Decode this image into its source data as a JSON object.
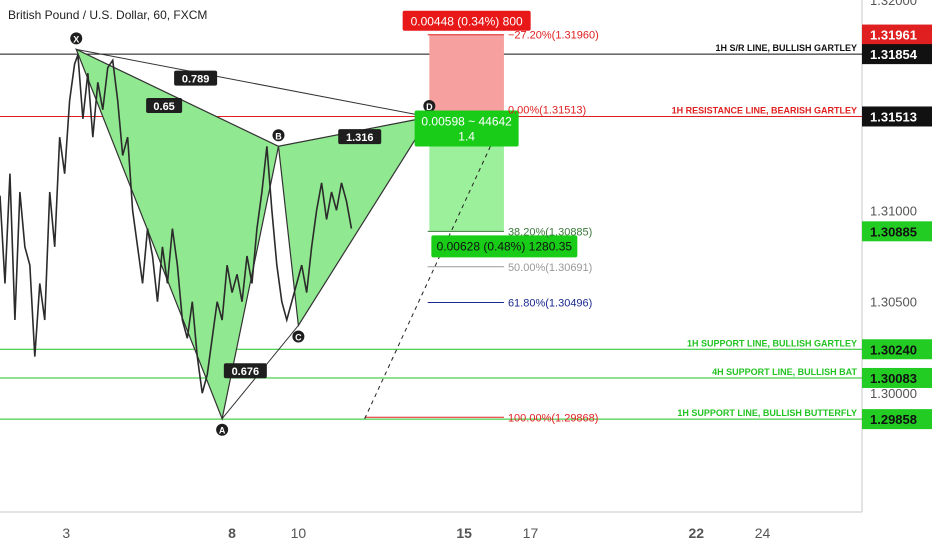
{
  "header": {
    "title": "British Pound / U.S. Dollar, 60, FXCM"
  },
  "chart_data": {
    "type": "line",
    "title": "British Pound / U.S. Dollar, 60, FXCM",
    "ylim": [
      1.2935,
      1.3215
    ],
    "xlim": [
      1.0,
      27.0
    ],
    "x_tick_labels": [
      {
        "x": 3,
        "label": "3"
      },
      {
        "x": 8,
        "label": "8"
      },
      {
        "x": 10,
        "label": "10"
      },
      {
        "x": 15,
        "label": "15"
      },
      {
        "x": 17,
        "label": "17"
      },
      {
        "x": 22,
        "label": "22"
      },
      {
        "x": 24,
        "label": "24"
      }
    ],
    "y_tick_labels": [
      {
        "y": 1.3215,
        "label": "1.32000",
        "partial": true
      },
      {
        "y": 1.31,
        "label": "1.31000"
      },
      {
        "y": 1.305,
        "label": "1.30500"
      },
      {
        "y": 1.3,
        "label": "1.30000"
      }
    ],
    "price_series_color": "#2b2b2b",
    "price_series": [
      [
        1.0,
        1.3108
      ],
      [
        1.15,
        1.306
      ],
      [
        1.3,
        1.312
      ],
      [
        1.45,
        1.304
      ],
      [
        1.6,
        1.311
      ],
      [
        1.75,
        1.308
      ],
      [
        1.9,
        1.307
      ],
      [
        2.05,
        1.302
      ],
      [
        2.2,
        1.306
      ],
      [
        2.35,
        1.304
      ],
      [
        2.5,
        1.311
      ],
      [
        2.65,
        1.308
      ],
      [
        2.8,
        1.314
      ],
      [
        2.95,
        1.312
      ],
      [
        3.1,
        1.316
      ],
      [
        3.25,
        1.318
      ],
      [
        3.35,
        1.3185
      ],
      [
        3.5,
        1.315
      ],
      [
        3.65,
        1.3175
      ],
      [
        3.8,
        1.314
      ],
      [
        3.95,
        1.317
      ],
      [
        4.1,
        1.3155
      ],
      [
        4.25,
        1.3178
      ],
      [
        4.4,
        1.3182
      ],
      [
        4.55,
        1.316
      ],
      [
        4.7,
        1.313
      ],
      [
        4.85,
        1.314
      ],
      [
        5.0,
        1.31
      ],
      [
        5.15,
        1.308
      ],
      [
        5.3,
        1.306
      ],
      [
        5.45,
        1.309
      ],
      [
        5.6,
        1.3075
      ],
      [
        5.75,
        1.305
      ],
      [
        5.9,
        1.308
      ],
      [
        6.05,
        1.306
      ],
      [
        6.2,
        1.309
      ],
      [
        6.35,
        1.307
      ],
      [
        6.5,
        1.304
      ],
      [
        6.65,
        1.303
      ],
      [
        6.8,
        1.305
      ],
      [
        6.95,
        1.302
      ],
      [
        7.1,
        1.3
      ],
      [
        7.25,
        1.301
      ],
      [
        7.4,
        1.303
      ],
      [
        7.55,
        1.305
      ],
      [
        7.7,
        1.304
      ],
      [
        7.85,
        1.307
      ],
      [
        8.0,
        1.3055
      ],
      [
        8.15,
        1.3065
      ],
      [
        8.3,
        1.305
      ],
      [
        8.45,
        1.3075
      ],
      [
        8.6,
        1.306
      ],
      [
        8.75,
        1.309
      ],
      [
        8.9,
        1.311
      ],
      [
        9.05,
        1.3135
      ],
      [
        9.2,
        1.31
      ],
      [
        9.35,
        1.307
      ],
      [
        9.5,
        1.305
      ],
      [
        9.65,
        1.304
      ],
      [
        9.8,
        1.305
      ],
      [
        9.95,
        1.306
      ],
      [
        10.1,
        1.307
      ],
      [
        10.25,
        1.3055
      ],
      [
        10.4,
        1.308
      ],
      [
        10.55,
        1.31
      ],
      [
        10.7,
        1.3115
      ],
      [
        10.85,
        1.3095
      ],
      [
        11.0,
        1.311
      ],
      [
        11.15,
        1.31
      ],
      [
        11.3,
        1.3115
      ],
      [
        11.45,
        1.3105
      ],
      [
        11.6,
        1.309
      ]
    ],
    "pattern": {
      "points": [
        {
          "label": "X",
          "x": 3.3,
          "y": 1.3188
        },
        {
          "label": "A",
          "x": 7.7,
          "y": 1.2986
        },
        {
          "label": "B",
          "x": 9.4,
          "y": 1.3135
        },
        {
          "label": "C",
          "x": 10.0,
          "y": 1.3037
        },
        {
          "label": "D",
          "x": 13.95,
          "y": 1.3151
        }
      ],
      "ratios": [
        {
          "label": "0.789",
          "x": 6.9,
          "y": 1.3172
        },
        {
          "label": "0.65",
          "x": 5.95,
          "y": 1.3157
        },
        {
          "label": "1.316",
          "x": 11.85,
          "y": 1.314
        },
        {
          "label": "0.676",
          "x": 8.4,
          "y": 1.3012
        }
      ],
      "fill_color": "#90e890",
      "stroke_color": "#333333"
    },
    "fib_levels": [
      {
        "value": 1.3196,
        "label": "−27.20%(1.31960)",
        "color": "#e02020",
        "x0": 13.9,
        "x1": 16.2
      },
      {
        "value": 1.30885,
        "label": "38.20%(1.30885)",
        "color": "#3a7a3a",
        "x0": 13.9,
        "x1": 16.2
      },
      {
        "value": 1.30691,
        "label": "50.00%(1.30691)",
        "color": "#999999",
        "x0": 13.9,
        "x1": 16.2
      },
      {
        "value": 1.30496,
        "label": "61.80%(1.30496)",
        "color": "#1a2a90",
        "x0": 13.9,
        "x1": 16.2
      },
      {
        "value": 1.29868,
        "label": "100.00%(1.29868)",
        "color": "#e02020",
        "x0": 12.0,
        "x1": 16.2
      }
    ],
    "horizontal_lines": [
      {
        "value": 1.31854,
        "label": "1H S/R LINE, BULLISH GARTLEY",
        "color": "#111111"
      },
      {
        "value": 1.31513,
        "label": "1H RESISTANCE LINE, BEARISH GARTLEY",
        "color": "#e02020",
        "fib_label": "0.00%(1.31513)"
      },
      {
        "value": 1.3024,
        "label": "1H SUPPORT LINE, BULLISH GARTLEY",
        "color": "#22c322"
      },
      {
        "value": 1.30083,
        "label": "4H SUPPORT LINE, BULLISH BAT",
        "color": "#22c322"
      },
      {
        "value": 1.29858,
        "label": "1H SUPPORT LINE, BULLISH BUTTERFLY",
        "color": "#22c322"
      }
    ],
    "price_badges": [
      {
        "value": 1.31961,
        "label": "1.31961",
        "bg": "#e02020",
        "fg": "#ffffff"
      },
      {
        "value": 1.31854,
        "label": "1.31854",
        "bg": "#111111",
        "fg": "#ffffff"
      },
      {
        "value": 1.31513,
        "label": "1.31513",
        "bg": "#111111",
        "fg": "#ffffff"
      },
      {
        "value": 1.30885,
        "label": "1.30885",
        "bg": "#22cc22",
        "fg": "#111111"
      },
      {
        "value": 1.3024,
        "label": "1.30240",
        "bg": "#22cc22",
        "fg": "#111111"
      },
      {
        "value": 1.30083,
        "label": "1.30083",
        "bg": "#22cc22",
        "fg": "#111111"
      },
      {
        "value": 1.29858,
        "label": "1.29858",
        "bg": "#22cc22",
        "fg": "#111111"
      }
    ],
    "position": {
      "x0": 13.95,
      "x1": 16.2,
      "entry": 1.31513,
      "stop": 1.3196,
      "target": 1.30885,
      "risk_color": "#f6a0a0",
      "reward_color": "#9cf09c",
      "risk_label": "0.00448 (0.34%) 800",
      "reward_label_line1": "0.00598 ~ 44642",
      "reward_label_line2": "1.4",
      "target_label": "0.00628 (0.48%) 1280.35"
    },
    "projection": {
      "from": [
        12.0,
        1.2986
      ],
      "to": [
        16.2,
        1.3151
      ],
      "color": "#222222"
    }
  }
}
